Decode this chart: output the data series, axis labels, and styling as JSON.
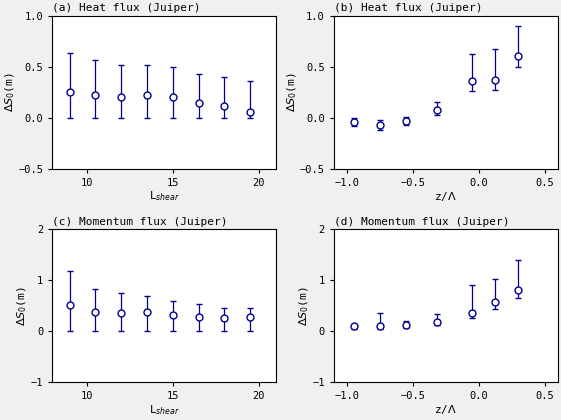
{
  "panel_a": {
    "title": "Heat flux (Juiper)",
    "label": "(a)",
    "xlabel": "L$_{shear}$",
    "ylabel": "$\\Delta S_0$(m)",
    "xlim": [
      8.0,
      21.0
    ],
    "ylim": [
      -0.5,
      1.0
    ],
    "yticks": [
      -0.5,
      0,
      0.5,
      1.0
    ],
    "xticks": [
      10,
      15,
      20
    ],
    "x": [
      9.0,
      10.5,
      12.0,
      13.5,
      15.0,
      16.5,
      18.0,
      19.5
    ],
    "y": [
      0.25,
      0.22,
      0.2,
      0.22,
      0.2,
      0.15,
      0.12,
      0.06
    ],
    "yerr_lo": [
      0.25,
      0.22,
      0.2,
      0.22,
      0.2,
      0.15,
      0.12,
      0.06
    ],
    "yerr_hi": [
      0.38,
      0.35,
      0.32,
      0.3,
      0.3,
      0.28,
      0.28,
      0.3
    ]
  },
  "panel_b": {
    "title": "Heat flux (Juiper)",
    "label": "(b)",
    "xlabel": "z/$\\Lambda$",
    "ylabel": "$\\Delta S_0$(m)",
    "xlim": [
      -1.1,
      0.6
    ],
    "ylim": [
      -0.5,
      1.0
    ],
    "yticks": [
      -0.5,
      0,
      0.5,
      1.0
    ],
    "xticks": [
      -1,
      -0.5,
      0,
      0.5
    ],
    "x": [
      -0.95,
      -0.75,
      -0.55,
      -0.32,
      -0.05,
      0.12,
      0.3
    ],
    "y": [
      -0.04,
      -0.07,
      -0.03,
      0.08,
      0.36,
      0.37,
      0.6
    ],
    "yerr_lo": [
      0.04,
      0.05,
      0.04,
      0.05,
      0.1,
      0.1,
      0.1
    ],
    "yerr_hi": [
      0.04,
      0.05,
      0.04,
      0.08,
      0.26,
      0.3,
      0.3
    ]
  },
  "panel_c": {
    "title": "Momentum flux (Juiper)",
    "label": "(c)",
    "xlabel": "L$_{shear}$",
    "ylabel": "$\\Delta S_0$(m)",
    "xlim": [
      8.0,
      21.0
    ],
    "ylim": [
      -1.0,
      2.0
    ],
    "yticks": [
      -1,
      0,
      1,
      2
    ],
    "xticks": [
      10,
      15,
      20
    ],
    "x": [
      9.0,
      10.5,
      12.0,
      13.5,
      15.0,
      16.5,
      18.0,
      19.5
    ],
    "y": [
      0.52,
      0.38,
      0.35,
      0.38,
      0.32,
      0.28,
      0.25,
      0.27
    ],
    "yerr_lo": [
      0.52,
      0.38,
      0.35,
      0.38,
      0.32,
      0.28,
      0.25,
      0.27
    ],
    "yerr_hi": [
      0.65,
      0.45,
      0.4,
      0.3,
      0.28,
      0.25,
      0.2,
      0.18
    ]
  },
  "panel_d": {
    "title": "Momentum flux (Juiper)",
    "label": "(d)",
    "xlabel": "z/$\\Lambda$",
    "ylabel": "$\\Delta S_0$(m)",
    "xlim": [
      -1.1,
      0.6
    ],
    "ylim": [
      -1.0,
      2.0
    ],
    "yticks": [
      -1,
      0,
      1,
      2
    ],
    "xticks": [
      -1,
      -0.5,
      0,
      0.5
    ],
    "x": [
      -0.95,
      -0.75,
      -0.55,
      -0.32,
      -0.05,
      0.12,
      0.3
    ],
    "y": [
      0.1,
      0.1,
      0.12,
      0.18,
      0.35,
      0.58,
      0.8
    ],
    "yerr_lo": [
      0.05,
      0.05,
      0.05,
      0.05,
      0.1,
      0.15,
      0.15
    ],
    "yerr_hi": [
      0.05,
      0.25,
      0.08,
      0.15,
      0.55,
      0.45,
      0.6
    ]
  },
  "line_color": "#00008B",
  "bg_color": "#f0f0f0"
}
